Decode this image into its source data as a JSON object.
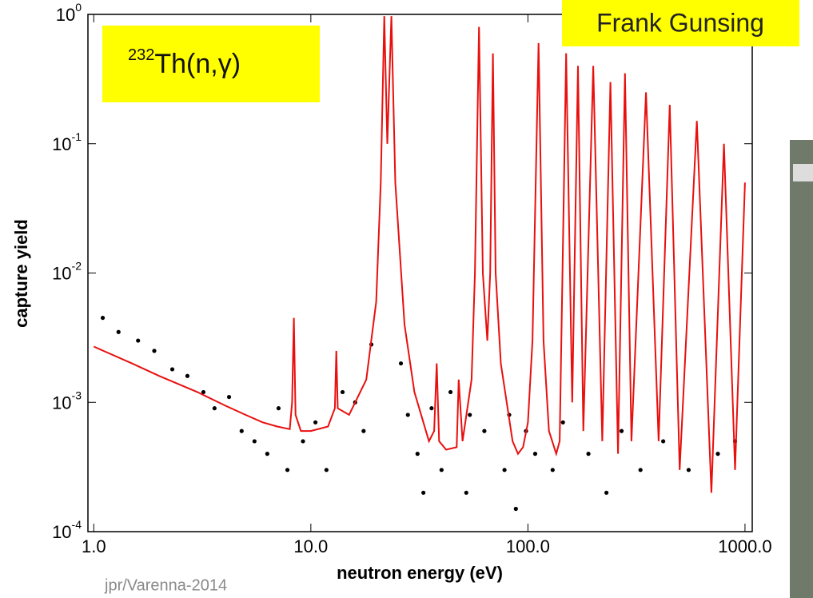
{
  "chart_data": {
    "type": "scatter-line",
    "x_label": "neutron energy (eV)",
    "y_label": "capture yield",
    "annotations": {
      "reaction": {
        "superscript": "232",
        "text": "Th(n,γ)"
      },
      "author": "Frank Gunsing",
      "credit": "jpr/Varenna-2014"
    },
    "log_x": true,
    "log_y": true,
    "xlim": [
      0.94,
      1080
    ],
    "ylim": [
      0.0001,
      1
    ],
    "xticks": [
      {
        "value": 1,
        "label": "1.0"
      },
      {
        "value": 10,
        "label": "10.0"
      },
      {
        "value": 100,
        "label": "100.0"
      },
      {
        "value": 1000,
        "label": "1000.0"
      }
    ],
    "yticks": [
      {
        "value": 0.0001,
        "label": "10",
        "exponent": "-4"
      },
      {
        "value": 0.001,
        "label": "10",
        "exponent": "-3"
      },
      {
        "value": 0.01,
        "label": "10",
        "exponent": "-2"
      },
      {
        "value": 0.1,
        "label": "10",
        "exponent": "-1"
      },
      {
        "value": 1,
        "label": "10",
        "exponent": "0"
      }
    ],
    "series": [
      {
        "kind": "points",
        "color": "#000000",
        "x": [
          1.1,
          1.3,
          1.6,
          1.9,
          2.3,
          2.7,
          3.2,
          3.6,
          4.2,
          4.8,
          5.5,
          6.3,
          7.1,
          7.8,
          9.2,
          10.5,
          11.8,
          14,
          16,
          17.5,
          19,
          26,
          28,
          31,
          33,
          36,
          40,
          44,
          52,
          54,
          63,
          78,
          82,
          88,
          98,
          108,
          130,
          145,
          190,
          230,
          270,
          330,
          420,
          550,
          750,
          900
        ],
        "values": [
          0.0045,
          0.0035,
          0.003,
          0.0025,
          0.0018,
          0.0016,
          0.0012,
          0.0009,
          0.0011,
          0.0006,
          0.0005,
          0.0004,
          0.0009,
          0.0003,
          0.0005,
          0.0007,
          0.0003,
          0.0012,
          0.001,
          0.0006,
          0.0028,
          0.002,
          0.0008,
          0.0004,
          0.0002,
          0.0009,
          0.0003,
          0.0012,
          0.0002,
          0.0008,
          0.0006,
          0.0003,
          0.0008,
          0.00015,
          0.0006,
          0.0004,
          0.0003,
          0.0007,
          0.0004,
          0.0002,
          0.0006,
          0.0003,
          0.0005,
          0.0003,
          0.0004,
          0.0005
        ]
      },
      {
        "kind": "line",
        "color": "#e8100e",
        "x": [
          1,
          1.5,
          2,
          3,
          4,
          5,
          6,
          7,
          8,
          8.2,
          8.35,
          8.5,
          9,
          10,
          12,
          12.9,
          13.1,
          13.3,
          15,
          18,
          20,
          21,
          21.8,
          22.5,
          23.5,
          24.5,
          27,
          30,
          35,
          37,
          38,
          39,
          42,
          47,
          48,
          50,
          55,
          57,
          59.5,
          62,
          65,
          67,
          69,
          71,
          75,
          85,
          90,
          95,
          100,
          105,
          112,
          118,
          125,
          135,
          140,
          150,
          160,
          170,
          180,
          200,
          220,
          240,
          260,
          280,
          300,
          350,
          400,
          450,
          500,
          600,
          700,
          800,
          900,
          1000
        ],
        "values": [
          0.0027,
          0.002,
          0.0016,
          0.0012,
          0.00095,
          0.0008,
          0.0007,
          0.00065,
          0.00062,
          0.001,
          0.0045,
          0.0008,
          0.0006,
          0.0006,
          0.00065,
          0.0009,
          0.0025,
          0.0009,
          0.0008,
          0.0015,
          0.006,
          0.05,
          0.97,
          0.1,
          0.97,
          0.05,
          0.004,
          0.0012,
          0.0005,
          0.0006,
          0.002,
          0.0005,
          0.00043,
          0.00045,
          0.0015,
          0.0005,
          0.0015,
          0.01,
          0.8,
          0.01,
          0.003,
          0.01,
          0.5,
          0.01,
          0.002,
          0.0005,
          0.0004,
          0.00045,
          0.0007,
          0.003,
          0.6,
          0.003,
          0.0006,
          0.0004,
          0.0005,
          0.5,
          0.001,
          0.4,
          0.0006,
          0.4,
          0.0005,
          0.3,
          0.0004,
          0.35,
          0.0005,
          0.25,
          0.0005,
          0.2,
          0.0003,
          0.15,
          0.0002,
          0.1,
          0.0003,
          0.05
        ]
      }
    ]
  }
}
